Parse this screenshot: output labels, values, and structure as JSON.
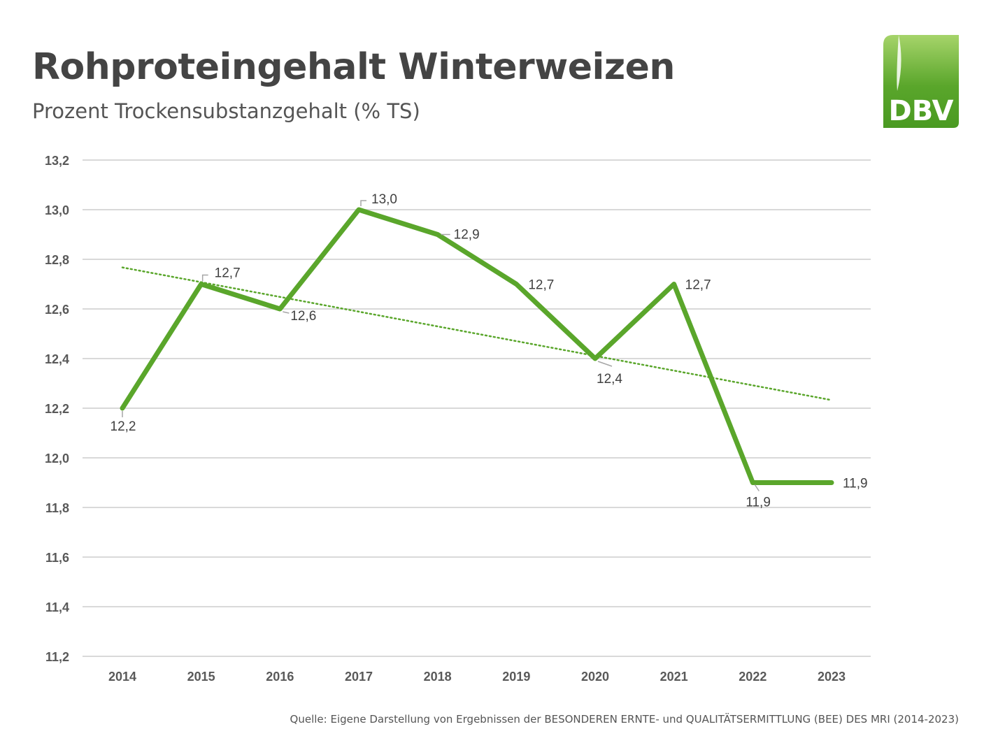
{
  "header": {
    "title": "Rohproteingehalt Winterweizen",
    "subtitle": "Prozent Trockensubstanzgehalt (% TS)"
  },
  "logo": {
    "text": "DBV",
    "color": "#5aa62b"
  },
  "chart_data": {
    "type": "line",
    "categories": [
      "2014",
      "2015",
      "2016",
      "2017",
      "2018",
      "2019",
      "2020",
      "2021",
      "2022",
      "2023"
    ],
    "series": [
      {
        "values": [
          12.2,
          12.7,
          12.6,
          13.0,
          12.9,
          12.7,
          12.4,
          12.7,
          11.9,
          11.9
        ],
        "color": "#5aa62b"
      }
    ],
    "data_labels": [
      "12,2",
      "12,7",
      "12,6",
      "13,0",
      "12,9",
      "12,7",
      "12,4",
      "12,7",
      "11,9",
      "11,9"
    ],
    "trendline": {
      "type": "linear",
      "style": "dotted",
      "color": "#5aa62b"
    },
    "yticks": [
      "11,2",
      "11,4",
      "11,6",
      "11,8",
      "12,0",
      "12,2",
      "12,4",
      "12,6",
      "12,8",
      "13,0",
      "13,2"
    ],
    "ylim": [
      11.2,
      13.2
    ],
    "grid": true,
    "legend": "none"
  },
  "source": "Quelle: Eigene Darstellung von Ergebnissen der BESONDEREN ERNTE- und QUALITÄTSERMITTLUNG (BEE) DES MRI (2014-2023)"
}
